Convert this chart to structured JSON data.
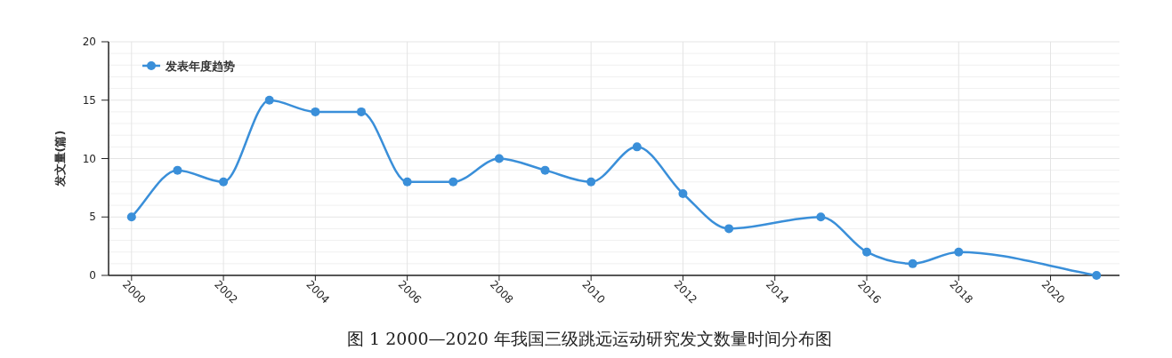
{
  "chart_data": {
    "type": "line",
    "ylabel": "发文量(篇)",
    "annotations": [
      "图 1  2000—2020 年我国三级跳远运动研究发文数量时间分布图"
    ],
    "x": [
      2000,
      2001,
      2002,
      2003,
      2004,
      2005,
      2006,
      2007,
      2008,
      2009,
      2010,
      2011,
      2012,
      2013,
      2015,
      2016,
      2017,
      2018,
      2021
    ],
    "series": [
      {
        "name": "发表年度趋势",
        "color": "#3a8fd9",
        "values": [
          5,
          9,
          8,
          15,
          14,
          14,
          8,
          8,
          10,
          9,
          8,
          11,
          7,
          4,
          5,
          2,
          1,
          2,
          0
        ]
      }
    ],
    "xlim": [
      1999.5,
      2021.5
    ],
    "xticks": [
      2000,
      2002,
      2004,
      2006,
      2008,
      2010,
      2012,
      2014,
      2016,
      2018,
      2020
    ],
    "ylim": [
      0,
      20
    ],
    "yticks": [
      0,
      {
        "value": 1,
        "label": null
      },
      {
        "value": 2,
        "label": null
      },
      {
        "value": 3,
        "label": null
      },
      {
        "value": 4,
        "label": null
      },
      5,
      {
        "value": 6,
        "label": null
      },
      {
        "value": 7,
        "label": null
      },
      {
        "value": 8,
        "label": null
      },
      {
        "value": 9,
        "label": null
      },
      10,
      {
        "value": 11,
        "label": null
      },
      {
        "value": 12,
        "label": null
      },
      {
        "value": 13,
        "label": null
      },
      {
        "value": 14,
        "label": null
      },
      15,
      {
        "value": 16,
        "label": null
      },
      {
        "value": 17,
        "label": null
      },
      {
        "value": 18,
        "label": null
      },
      {
        "value": 19,
        "label": null
      },
      20
    ],
    "grid": true,
    "legend": "top left",
    "marker": "circle",
    "line_style": "solid"
  }
}
